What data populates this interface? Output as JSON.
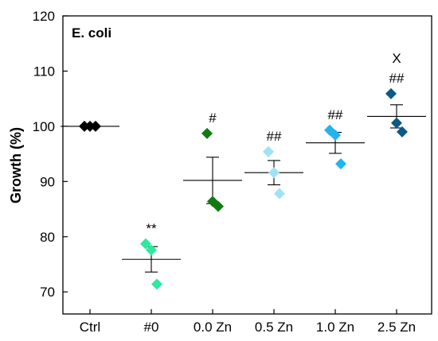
{
  "chart_data": {
    "type": "scatter",
    "title": "E. coli",
    "xlabel": "",
    "ylabel": "Growth (%)",
    "ylim": [
      66,
      120
    ],
    "yticks": [
      70,
      80,
      90,
      100,
      110,
      120
    ],
    "categories": [
      "Ctrl",
      "#0",
      "0.0 Zn",
      "0.5 Zn",
      "1.0 Zn",
      "2.5 Zn"
    ],
    "colors": [
      "#000000",
      "#2ee8a0",
      "#127a12",
      "#a0e2f5",
      "#21b4f0",
      "#0b5a8a"
    ],
    "points": [
      [
        100.0,
        100.0,
        100.0
      ],
      [
        78.7,
        77.6,
        71.4
      ],
      [
        98.7,
        86.4,
        85.5
      ],
      [
        95.4,
        91.6,
        87.8
      ],
      [
        99.3,
        98.4,
        93.2
      ],
      [
        105.9,
        100.6,
        99.0
      ]
    ],
    "means": [
      100.0,
      75.9,
      90.2,
      91.6,
      97.0,
      101.8
    ],
    "errors": [
      0.0,
      2.3,
      4.2,
      2.2,
      1.9,
      2.1
    ],
    "annotations": [
      {
        "category": "#0",
        "lines": [
          "**"
        ]
      },
      {
        "category": "0.0 Zn",
        "lines": [
          "#"
        ]
      },
      {
        "category": "0.5 Zn",
        "lines": [
          "##"
        ]
      },
      {
        "category": "1.0 Zn",
        "lines": [
          "##"
        ]
      },
      {
        "category": "2.5 Zn",
        "lines": [
          "X",
          "##"
        ]
      }
    ],
    "grid": false,
    "legend": "none"
  }
}
